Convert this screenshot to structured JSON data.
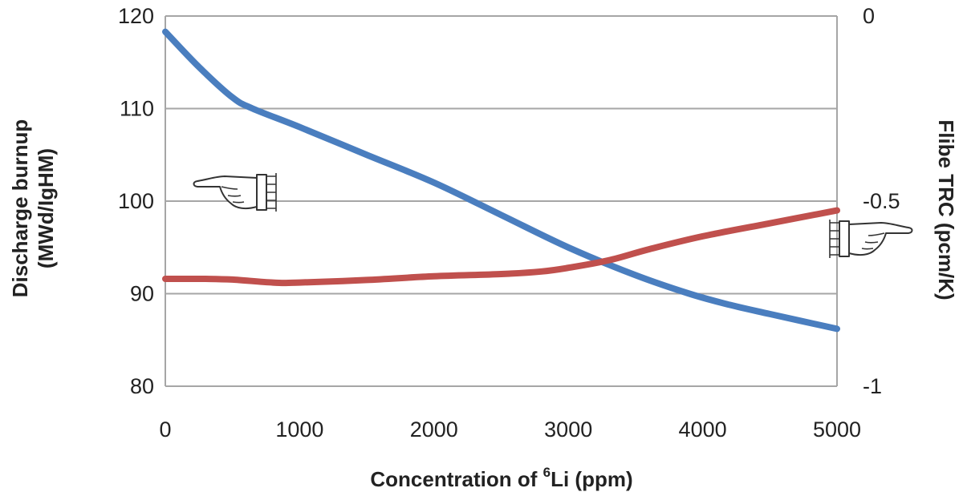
{
  "chart_data": {
    "type": "line",
    "xlabel_main": "Concentration of ",
    "xlabel_sup": "6",
    "xlabel_tail": "Li (ppm)",
    "ylabel_left_line1": "Discharge burnup",
    "ylabel_left_line2": "(MWd/IgHM)",
    "ylabel_right": "Flibe TRC (pcm/K)",
    "xlim": [
      0,
      5000
    ],
    "ylim_left": [
      80,
      120
    ],
    "ylim_right": [
      -1,
      0
    ],
    "x_ticks": [
      "0",
      "1000",
      "2000",
      "3000",
      "4000",
      "5000"
    ],
    "y_left_ticks": [
      "80",
      "90",
      "100",
      "110",
      "120"
    ],
    "y_right_ticks": [
      "-1",
      "-0.5",
      "0"
    ],
    "grid": true,
    "series": [
      {
        "axis": "left",
        "color": "#4a7ebf",
        "x": [
          0,
          250,
          500,
          650,
          1000,
          1500,
          2000,
          2500,
          3000,
          3500,
          3900,
          4200,
          4500,
          5000
        ],
        "y": [
          118.3,
          114.5,
          111.2,
          110.0,
          108.0,
          105.0,
          102.0,
          98.5,
          95.0,
          92.0,
          90.0,
          88.8,
          87.8,
          86.2
        ]
      },
      {
        "axis": "right",
        "color": "#c0504d",
        "x": [
          0,
          300,
          500,
          800,
          1000,
          1500,
          2000,
          2500,
          2800,
          3000,
          3300,
          3600,
          4000,
          4500,
          5000
        ],
        "y": [
          -0.71,
          -0.71,
          -0.712,
          -0.72,
          -0.72,
          -0.713,
          -0.703,
          -0.697,
          -0.69,
          -0.68,
          -0.66,
          -0.63,
          -0.595,
          -0.56,
          -0.525
        ]
      }
    ],
    "annotations": [
      {
        "icon": "pointing-hand-left-icon",
        "meaning": "blue series reads on left axis"
      },
      {
        "icon": "pointing-hand-right-icon",
        "meaning": "red series reads on right axis"
      }
    ]
  }
}
